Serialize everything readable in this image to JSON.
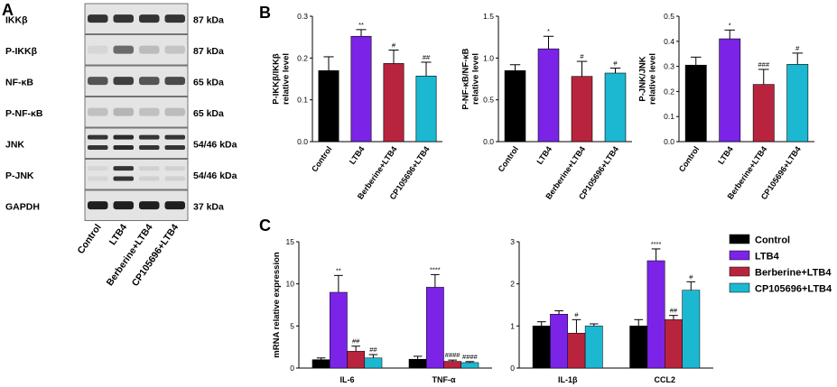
{
  "figure": {
    "panels": {
      "a": "A",
      "b": "B",
      "c": "C"
    },
    "colors": {
      "control": "#000000",
      "ltb4": "#7b24e8",
      "berberine": "#b8243e",
      "cp": "#1cb8d2"
    },
    "blot": {
      "rows": [
        {
          "name": "IKKβ",
          "kda": "87 kDa"
        },
        {
          "name": "P-IKKβ",
          "kda": "87 kDa"
        },
        {
          "name": "NF-κB",
          "kda": "65 kDa"
        },
        {
          "name": "P-NF-κB",
          "kda": "65 kDa"
        },
        {
          "name": "JNK",
          "kda": "54/46 kDa"
        },
        {
          "name": "P-JNK",
          "kda": "54/46 kDa"
        },
        {
          "name": "GAPDH",
          "kda": "37 kDa"
        }
      ],
      "lanes": [
        "Control",
        "LTB4",
        "Berberine+LTB4",
        "CP105696+LTB4"
      ],
      "intensity": [
        [
          0.85,
          0.85,
          0.85,
          0.85
        ],
        [
          0.1,
          0.6,
          0.22,
          0.18
        ],
        [
          0.7,
          0.8,
          0.7,
          0.75
        ],
        [
          0.2,
          0.25,
          0.2,
          0.22
        ],
        [
          0.85,
          0.9,
          0.85,
          0.85
        ],
        [
          0.1,
          0.85,
          0.12,
          0.12
        ],
        [
          0.95,
          0.95,
          0.95,
          0.95
        ]
      ]
    },
    "legend": [
      "Control",
      "LTB4",
      "Berberine+LTB4",
      "CP105696+LTB4"
    ]
  },
  "chart_data": [
    {
      "type": "bar",
      "panel": "B",
      "ylabel": "P-IKKβ/IKKβ\nrelative level",
      "categories": [
        "Control",
        "LTB4",
        "Berberine+LTB4",
        "CP105696+LTB4"
      ],
      "values": [
        0.17,
        0.252,
        0.187,
        0.157
      ],
      "errors": [
        0.033,
        0.016,
        0.032,
        0.033
      ],
      "sig": [
        "",
        "**",
        "#",
        "##"
      ],
      "ylim": [
        0,
        0.3
      ],
      "yticks": [
        "0.0",
        "0.1",
        "0.2",
        "0.3"
      ]
    },
    {
      "type": "bar",
      "panel": "B",
      "ylabel": "P-NF-κB/NF-κB\nrelative level",
      "categories": [
        "Control",
        "LTB4",
        "Berberine+LTB4",
        "CP105696+LTB4"
      ],
      "values": [
        0.85,
        1.11,
        0.78,
        0.82
      ],
      "errors": [
        0.07,
        0.15,
        0.18,
        0.06
      ],
      "sig": [
        "",
        "*",
        "#",
        "#"
      ],
      "ylim": [
        0,
        1.5
      ],
      "yticks": [
        "0.0",
        "0.5",
        "1.0",
        "1.5"
      ]
    },
    {
      "type": "bar",
      "panel": "B",
      "ylabel": "P-JNK/JNK\nrelative level",
      "categories": [
        "Control",
        "LTB4",
        "Berberine+LTB4",
        "CP105696+LTB4"
      ],
      "values": [
        0.305,
        0.41,
        0.228,
        0.308
      ],
      "errors": [
        0.032,
        0.035,
        0.06,
        0.045
      ],
      "sig": [
        "",
        "*",
        "###",
        "#"
      ],
      "ylim": [
        0,
        0.5
      ],
      "yticks": [
        "0.0",
        "0.1",
        "0.2",
        "0.3",
        "0.4",
        "0.5"
      ]
    },
    {
      "type": "bar",
      "panel": "C",
      "ylabel": "mRNA relative expression",
      "categories": [
        "IL-6",
        "TNF-α"
      ],
      "series": [
        {
          "name": "Control",
          "values": [
            1.0,
            1.05
          ],
          "errors": [
            0.2,
            0.35
          ]
        },
        {
          "name": "LTB4",
          "values": [
            9.0,
            9.6
          ],
          "errors": [
            2.0,
            1.5
          ]
        },
        {
          "name": "Berberine+LTB4",
          "values": [
            2.0,
            0.8
          ],
          "errors": [
            0.6,
            0.15
          ]
        },
        {
          "name": "CP105696+LTB4",
          "values": [
            1.2,
            0.65
          ],
          "errors": [
            0.4,
            0.12
          ]
        }
      ],
      "sig": [
        [
          "",
          "**",
          "##",
          "##"
        ],
        [
          "",
          "****",
          "####",
          "####"
        ]
      ],
      "ylim": [
        0,
        15
      ],
      "yticks": [
        "0",
        "5",
        "10",
        "15"
      ]
    },
    {
      "type": "bar",
      "panel": "C",
      "ylabel": "",
      "categories": [
        "IL-1β",
        "CCL2"
      ],
      "series": [
        {
          "name": "Control",
          "values": [
            1.0,
            1.0
          ],
          "errors": [
            0.1,
            0.15
          ]
        },
        {
          "name": "LTB4",
          "values": [
            1.28,
            2.55
          ],
          "errors": [
            0.08,
            0.28
          ]
        },
        {
          "name": "Berberine+LTB4",
          "values": [
            0.83,
            1.15
          ],
          "errors": [
            0.32,
            0.1
          ]
        },
        {
          "name": "CP105696+LTB4",
          "values": [
            1.0,
            1.85
          ],
          "errors": [
            0.05,
            0.2
          ]
        }
      ],
      "sig": [
        [
          "",
          "",
          "#",
          ""
        ],
        [
          "",
          "****",
          "##",
          "#"
        ]
      ],
      "ylim": [
        0,
        3
      ],
      "yticks": [
        "0",
        "1",
        "2",
        "3"
      ]
    }
  ]
}
